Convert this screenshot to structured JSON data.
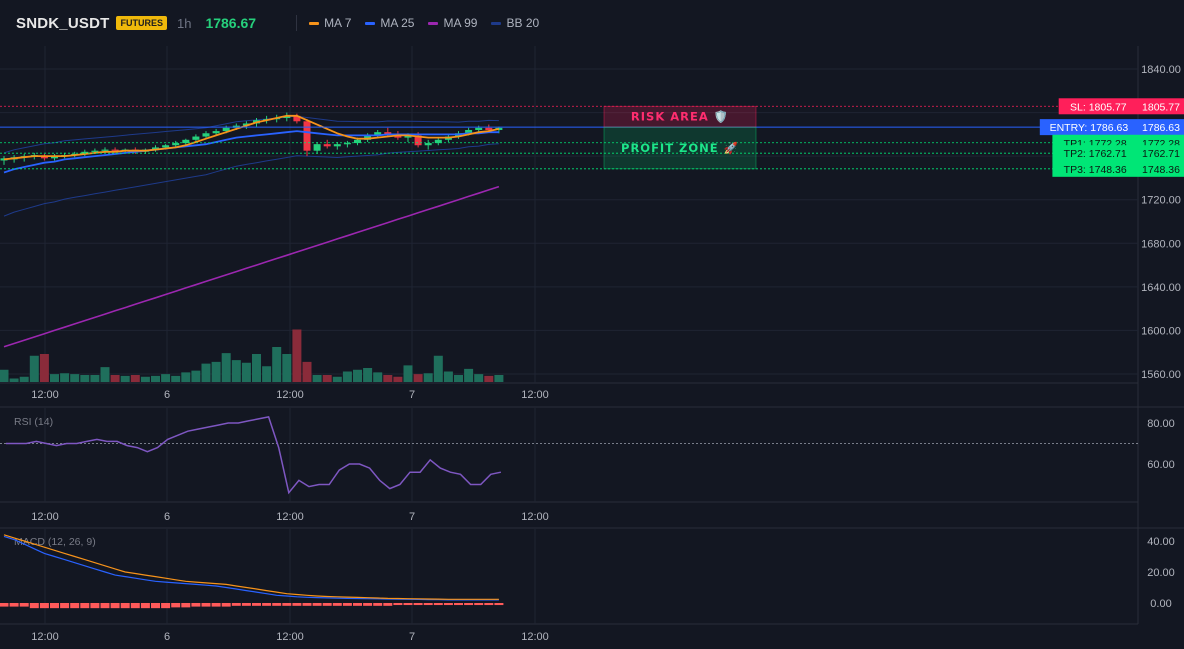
{
  "header": {
    "symbol": "SNDK_USDT",
    "badge": "FUTURES",
    "timeframe": "1h",
    "last_price": "1786.67",
    "legend": [
      {
        "label": "MA 7",
        "color": "#f7931a"
      },
      {
        "label": "MA 25",
        "color": "#2962ff"
      },
      {
        "label": "MA 99",
        "color": "#9c27b0"
      },
      {
        "label": "BB 20",
        "color": "#1e3a8a"
      }
    ]
  },
  "colors": {
    "background": "#131722",
    "up": "#26d07c",
    "down": "#f23645",
    "grid": "#1f2433",
    "sl": "#ff1f5a",
    "entry": "#2962ff",
    "tp": "#00e676",
    "rsi": "#7e57c2"
  },
  "levels": {
    "sl": {
      "label": "SL: 1805.77",
      "value": 1805.77,
      "axis_label": "1805.77"
    },
    "entry": {
      "label": "ENTRY: 1786.63",
      "value": 1786.63,
      "axis_label": "1786.63"
    },
    "tp1": {
      "label": "TP1: 1772.28",
      "value": 1772.28,
      "axis_label": "1772.28"
    },
    "tp2": {
      "label": "TP2: 1762.71",
      "value": 1762.71,
      "axis_label": "1762.71"
    },
    "tp3": {
      "label": "TP3: 1748.36",
      "value": 1748.36,
      "axis_label": "1748.36"
    }
  },
  "zones": {
    "risk_label": "RISK AREA 🛡️",
    "profit_label": "PROFIT ZONE 🚀"
  },
  "chart_data": [
    {
      "type": "candlestick",
      "pane": "price",
      "title": "SNDK_USDT 1h",
      "ylim": [
        1550,
        1860
      ],
      "y_ticks": [
        1560,
        1600,
        1640,
        1680,
        1720,
        1840
      ],
      "x_ticks": [
        "12:00",
        "6",
        "12:00",
        "7",
        "12:00"
      ],
      "x_range": [
        0,
        50
      ],
      "x_tick_positions": [
        4,
        16,
        28,
        40,
        52
      ],
      "candles": [
        [
          1756,
          1760,
          1752,
          1758
        ],
        [
          1757,
          1761,
          1754,
          1759
        ],
        [
          1759,
          1762,
          1755,
          1760
        ],
        [
          1760,
          1763,
          1757,
          1761
        ],
        [
          1760,
          1762,
          1756,
          1758
        ],
        [
          1758,
          1762,
          1756,
          1760
        ],
        [
          1760,
          1763,
          1758,
          1761
        ],
        [
          1761,
          1764,
          1759,
          1762
        ],
        [
          1762,
          1766,
          1760,
          1764
        ],
        [
          1764,
          1767,
          1762,
          1765
        ],
        [
          1765,
          1768,
          1763,
          1766
        ],
        [
          1766,
          1768,
          1764,
          1765
        ],
        [
          1765,
          1767,
          1763,
          1766
        ],
        [
          1766,
          1768,
          1762,
          1764
        ],
        [
          1764,
          1767,
          1762,
          1766
        ],
        [
          1766,
          1770,
          1764,
          1768
        ],
        [
          1768,
          1771,
          1766,
          1770
        ],
        [
          1770,
          1774,
          1768,
          1772
        ],
        [
          1772,
          1776,
          1770,
          1775
        ],
        [
          1775,
          1780,
          1773,
          1778
        ],
        [
          1778,
          1783,
          1776,
          1781
        ],
        [
          1781,
          1785,
          1779,
          1783
        ],
        [
          1783,
          1788,
          1781,
          1786
        ],
        [
          1786,
          1790,
          1784,
          1788
        ],
        [
          1788,
          1792,
          1785,
          1790
        ],
        [
          1790,
          1795,
          1787,
          1793
        ],
        [
          1793,
          1797,
          1790,
          1794
        ],
        [
          1794,
          1798,
          1791,
          1795
        ],
        [
          1795,
          1800,
          1792,
          1797
        ],
        [
          1797,
          1799,
          1790,
          1792
        ],
        [
          1792,
          1794,
          1760,
          1765
        ],
        [
          1765,
          1773,
          1762,
          1771
        ],
        [
          1771,
          1775,
          1767,
          1769
        ],
        [
          1769,
          1773,
          1766,
          1771
        ],
        [
          1771,
          1774,
          1768,
          1772
        ],
        [
          1772,
          1777,
          1770,
          1775
        ],
        [
          1775,
          1781,
          1773,
          1779
        ],
        [
          1779,
          1784,
          1777,
          1782
        ],
        [
          1782,
          1786,
          1778,
          1780
        ],
        [
          1780,
          1783,
          1775,
          1777
        ],
        [
          1777,
          1781,
          1773,
          1779
        ],
        [
          1779,
          1782,
          1768,
          1770
        ],
        [
          1770,
          1775,
          1766,
          1772
        ],
        [
          1772,
          1777,
          1770,
          1775
        ],
        [
          1775,
          1780,
          1773,
          1778
        ],
        [
          1778,
          1783,
          1776,
          1781
        ],
        [
          1781,
          1786,
          1779,
          1784
        ],
        [
          1784,
          1788,
          1781,
          1786
        ],
        [
          1786,
          1789,
          1782,
          1784
        ],
        [
          1784,
          1787,
          1781,
          1786
        ]
      ],
      "ma7": [
        1757,
        1758,
        1759,
        1760,
        1760,
        1760,
        1760,
        1761,
        1762,
        1763,
        1764,
        1764,
        1765,
        1765,
        1765,
        1766,
        1767,
        1768,
        1770,
        1773,
        1776,
        1779,
        1782,
        1785,
        1788,
        1791,
        1793,
        1795,
        1797,
        1797,
        1793,
        1789,
        1785,
        1781,
        1778,
        1776,
        1776,
        1777,
        1778,
        1779,
        1779,
        1778,
        1777,
        1777,
        1777,
        1778,
        1780,
        1782,
        1783,
        1785
      ],
      "ma25": [
        1745,
        1748,
        1750,
        1752,
        1754,
        1755,
        1757,
        1758,
        1759,
        1760,
        1761,
        1762,
        1763,
        1764,
        1765,
        1766,
        1767,
        1768,
        1769,
        1770,
        1771,
        1773,
        1775,
        1777,
        1778,
        1779,
        1780,
        1781,
        1782,
        1783,
        1782,
        1781,
        1780,
        1779,
        1779,
        1779,
        1779,
        1779,
        1780,
        1780,
        1780,
        1780,
        1780,
        1780,
        1780,
        1780,
        1781,
        1781,
        1782,
        1782
      ],
      "ma99": [
        1585,
        1588,
        1591,
        1594,
        1597,
        1600,
        1603,
        1606,
        1609,
        1612,
        1615,
        1618,
        1621,
        1624,
        1627,
        1630,
        1633,
        1636,
        1639,
        1642,
        1645,
        1648,
        1651,
        1654,
        1657,
        1660,
        1663,
        1666,
        1669,
        1672,
        1675,
        1678,
        1681,
        1684,
        1687,
        1690,
        1693,
        1696,
        1699,
        1702,
        1705,
        1708,
        1711,
        1714,
        1717,
        1720,
        1723,
        1726,
        1729,
        1732
      ],
      "volumes": [
        14,
        4,
        6,
        30,
        32,
        9,
        10,
        9,
        8,
        8,
        17,
        8,
        7,
        8,
        6,
        7,
        9,
        7,
        11,
        13,
        21,
        23,
        33,
        25,
        22,
        32,
        18,
        40,
        32,
        60,
        23,
        8,
        8,
        6,
        12,
        14,
        16,
        11,
        8,
        6,
        19,
        9,
        10,
        30,
        12,
        8,
        15,
        9,
        7,
        8
      ],
      "volume_max": 80
    },
    {
      "type": "line",
      "pane": "rsi",
      "title": "RSI (14)",
      "ylim": [
        40,
        90
      ],
      "y_ticks": [
        60,
        80
      ],
      "overbought": 70,
      "values": [
        70,
        70,
        70,
        71,
        70,
        69,
        70,
        70,
        71,
        72,
        71,
        71,
        69,
        68,
        66,
        68,
        72,
        74,
        76,
        77,
        78,
        79,
        80,
        80,
        81,
        82,
        83,
        68,
        46,
        52,
        49,
        50,
        50,
        57,
        60,
        60,
        58,
        52,
        48,
        50,
        56,
        56,
        62,
        58,
        56,
        55,
        50,
        50,
        55,
        56
      ]
    },
    {
      "type": "line",
      "pane": "macd",
      "title": "MACD (12, 26, 9)",
      "ylim": [
        -5,
        45
      ],
      "y_ticks": [
        0,
        20,
        40
      ],
      "macd": [
        43,
        41,
        38,
        35,
        32,
        30,
        28,
        26,
        24,
        22,
        20,
        18,
        17,
        16,
        15,
        14,
        13.5,
        13,
        12.5,
        12,
        11.5,
        11,
        10,
        9,
        8,
        7,
        6,
        5,
        4.5,
        4,
        3.7,
        3.5,
        3.3,
        3.1,
        3,
        2.9,
        2.8,
        2.7,
        2.6,
        2.5,
        2.4,
        2.3,
        2.2,
        2.1,
        2,
        2,
        2,
        2,
        2,
        2
      ],
      "signal": [
        44,
        42,
        40,
        38,
        36,
        34,
        32,
        30,
        28,
        26,
        24,
        22,
        20,
        19,
        18,
        17,
        16,
        15,
        14,
        13.5,
        13,
        12.5,
        12,
        11,
        10,
        9,
        8,
        7,
        6,
        5.5,
        5,
        4.5,
        4.2,
        4,
        3.8,
        3.6,
        3.4,
        3.2,
        3,
        2.9,
        2.8,
        2.7,
        2.6,
        2.5,
        2.4,
        2.4,
        2.4,
        2.4,
        2.4,
        2.4
      ],
      "histogram": [
        -2,
        -2,
        -2,
        -3,
        -3,
        -3,
        -3,
        -3,
        -3,
        -3,
        -3,
        -3,
        -3,
        -3,
        -3,
        -3,
        -3,
        -2.5,
        -2.5,
        -2,
        -2,
        -2,
        -2,
        -1.5,
        -1.5,
        -1.5,
        -1.5,
        -1.5,
        -1.5,
        -1.5,
        -1.5,
        -1.5,
        -1.5,
        -1.5,
        -1.5,
        -1.5,
        -1.5,
        -1.5,
        -1.5,
        -1,
        -1,
        -1,
        -1,
        -1,
        -1,
        -1,
        -1,
        -1,
        -1,
        -1
      ],
      "x_ticks": [
        "12:00",
        "6",
        "12:00",
        "7",
        "12:00"
      ]
    }
  ]
}
